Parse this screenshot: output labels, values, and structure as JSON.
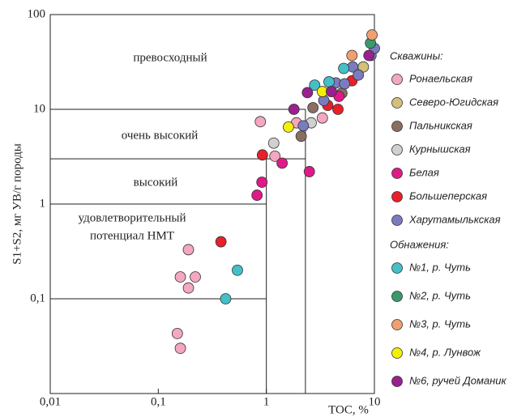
{
  "chart_data": {
    "type": "scatter",
    "ylabel": "S1+S2, мг УВ/г породы",
    "xlabel": "TOC, %",
    "log_x": true,
    "log_y": true,
    "xlim": [
      0.01,
      10
    ],
    "ylim": [
      0.01,
      100
    ],
    "xticks": [
      {
        "value": 0.01,
        "label": "0,01"
      },
      {
        "value": 0.1,
        "label": "0,1"
      },
      1,
      10
    ],
    "yticks": [
      {
        "value": 0.1,
        "label": "0,1"
      },
      1,
      10,
      100
    ],
    "annotations": [
      "превосходный",
      "очень высокий",
      "высокий",
      "удовлетворительный",
      "потенциал НМТ"
    ],
    "zone_lines": [
      {
        "x": [
          0.01,
          2.3
        ],
        "y": [
          10,
          10
        ]
      },
      {
        "x": [
          0.01,
          2.3
        ],
        "y": [
          3,
          3
        ]
      },
      {
        "x": [
          0.01,
          1
        ],
        "y": [
          1,
          1
        ]
      },
      {
        "x": [
          0.01,
          1
        ],
        "y": [
          0.1,
          0.1
        ]
      },
      {
        "x": [
          1,
          1
        ],
        "y": [
          0.01,
          3
        ]
      },
      {
        "x": [
          2.3,
          2.3
        ],
        "y": [
          0.01,
          10
        ]
      }
    ],
    "legend_groups": [
      "Скважины:",
      "Обнажения:"
    ],
    "series": [
      {
        "name": "Ронаельская",
        "group": 0,
        "color": "#f4a7c0",
        "x": [
          0.19,
          0.16,
          0.22,
          0.19,
          0.15,
          0.16,
          0.88,
          1.2,
          1.9,
          3.3
        ],
        "values": [
          0.33,
          0.17,
          0.17,
          0.13,
          0.043,
          0.03,
          7.4,
          3.2,
          7.2,
          8.1
        ]
      },
      {
        "name": "Северо-Югидская",
        "group": 0,
        "color": "#d4c07a",
        "x": [
          7.9
        ],
        "values": [
          28
        ]
      },
      {
        "name": "Пальникская",
        "group": 0,
        "color": "#8b6e62",
        "x": [
          2.7,
          2.1,
          5.0
        ],
        "values": [
          10.4,
          5.2,
          14.8
        ]
      },
      {
        "name": "Курнышская",
        "group": 0,
        "color": "#d0d0d0",
        "x": [
          1.17,
          2.6
        ],
        "values": [
          4.4,
          7.2
        ]
      },
      {
        "name": "Белая",
        "group": 0,
        "color": "#e0198a",
        "x": [
          0.82,
          0.91,
          1.4,
          2.5,
          4.7
        ],
        "values": [
          1.24,
          1.7,
          2.7,
          2.2,
          13.7
        ]
      },
      {
        "name": "Большеперская",
        "group": 0,
        "color": "#e8202a",
        "x": [
          0.92,
          0.38,
          3.7,
          4.6,
          6.2
        ],
        "values": [
          3.3,
          0.4,
          11,
          10,
          20
        ]
      },
      {
        "name": "Харутамылькская",
        "group": 0,
        "color": "#7b7bc0",
        "x": [
          2.2,
          3.4,
          4.4,
          5.3,
          6.3,
          7.1,
          9.3,
          10
        ],
        "values": [
          6.7,
          12.4,
          19,
          18.6,
          28,
          23,
          37,
          44
        ]
      },
      {
        "name": "№1, р. Чуть",
        "group": 1,
        "color": "#45bfc8",
        "x": [
          0.42,
          0.54,
          2.8,
          3.8,
          5.2
        ],
        "values": [
          0.1,
          0.2,
          18,
          19.5,
          27
        ]
      },
      {
        "name": "№2, р. Чуть",
        "group": 1,
        "color": "#3a9a6a",
        "x": [
          9.2
        ],
        "values": [
          50
        ]
      },
      {
        "name": "№3, р. Чуть",
        "group": 1,
        "color": "#f0a070",
        "x": [
          9.5,
          6.2
        ],
        "values": [
          61,
          37
        ]
      },
      {
        "name": "№4, р. Лунвож",
        "group": 1,
        "color": "#f5f000",
        "x": [
          1.6,
          3.3
        ],
        "values": [
          6.5,
          15.4
        ]
      },
      {
        "name": "№6, ручей Доманик",
        "group": 1,
        "color": "#9a2090",
        "x": [
          1.8,
          2.4,
          4.0,
          8.9
        ],
        "values": [
          10,
          15,
          15.4,
          37
        ]
      }
    ]
  }
}
